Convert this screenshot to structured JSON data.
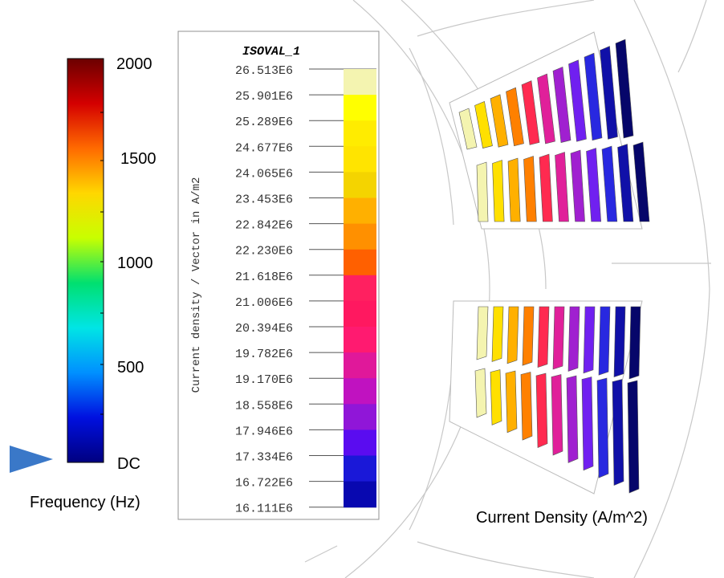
{
  "frequency_legend": {
    "title": "Frequency (Hz)",
    "tick_labels": [
      "2000",
      "1500",
      "1000",
      "500",
      "DC"
    ],
    "current_value": "DC",
    "colors": [
      "#6b0000",
      "#d40000",
      "#ff6a00",
      "#ffd700",
      "#c8ff00",
      "#00e070",
      "#00e5e5",
      "#0090ff",
      "#0010e0",
      "#000080"
    ]
  },
  "isoval_legend": {
    "title": "ISOVAL_1",
    "axis_label": "Current density / Vector in A/m2",
    "values": [
      "26.513E6",
      "25.901E6",
      "25.289E6",
      "24.677E6",
      "24.065E6",
      "23.453E6",
      "22.842E6",
      "22.230E6",
      "21.618E6",
      "21.006E6",
      "20.394E6",
      "19.782E6",
      "19.170E6",
      "18.558E6",
      "17.946E6",
      "17.334E6",
      "16.722E6",
      "16.111E6"
    ],
    "colors": [
      "#f4f4b0",
      "#ffff00",
      "#ffec00",
      "#ffe400",
      "#f4d400",
      "#ffb000",
      "#ff9000",
      "#ff6000",
      "#ff2060",
      "#ff1860",
      "#ff1a70",
      "#e0189a",
      "#c012c0",
      "#9016d8",
      "#5a0cf0",
      "#1a18d8",
      "#0808b0",
      "#080878"
    ]
  },
  "motor_view": {
    "caption": "Current Density (A/m^2)",
    "slot_colors": [
      "#f4f4b0",
      "#ffe000",
      "#ffb000",
      "#ff8000",
      "#ff2a50",
      "#e0209a",
      "#a020d0",
      "#7020f0",
      "#2828e0",
      "#1010a8",
      "#06066a"
    ]
  }
}
